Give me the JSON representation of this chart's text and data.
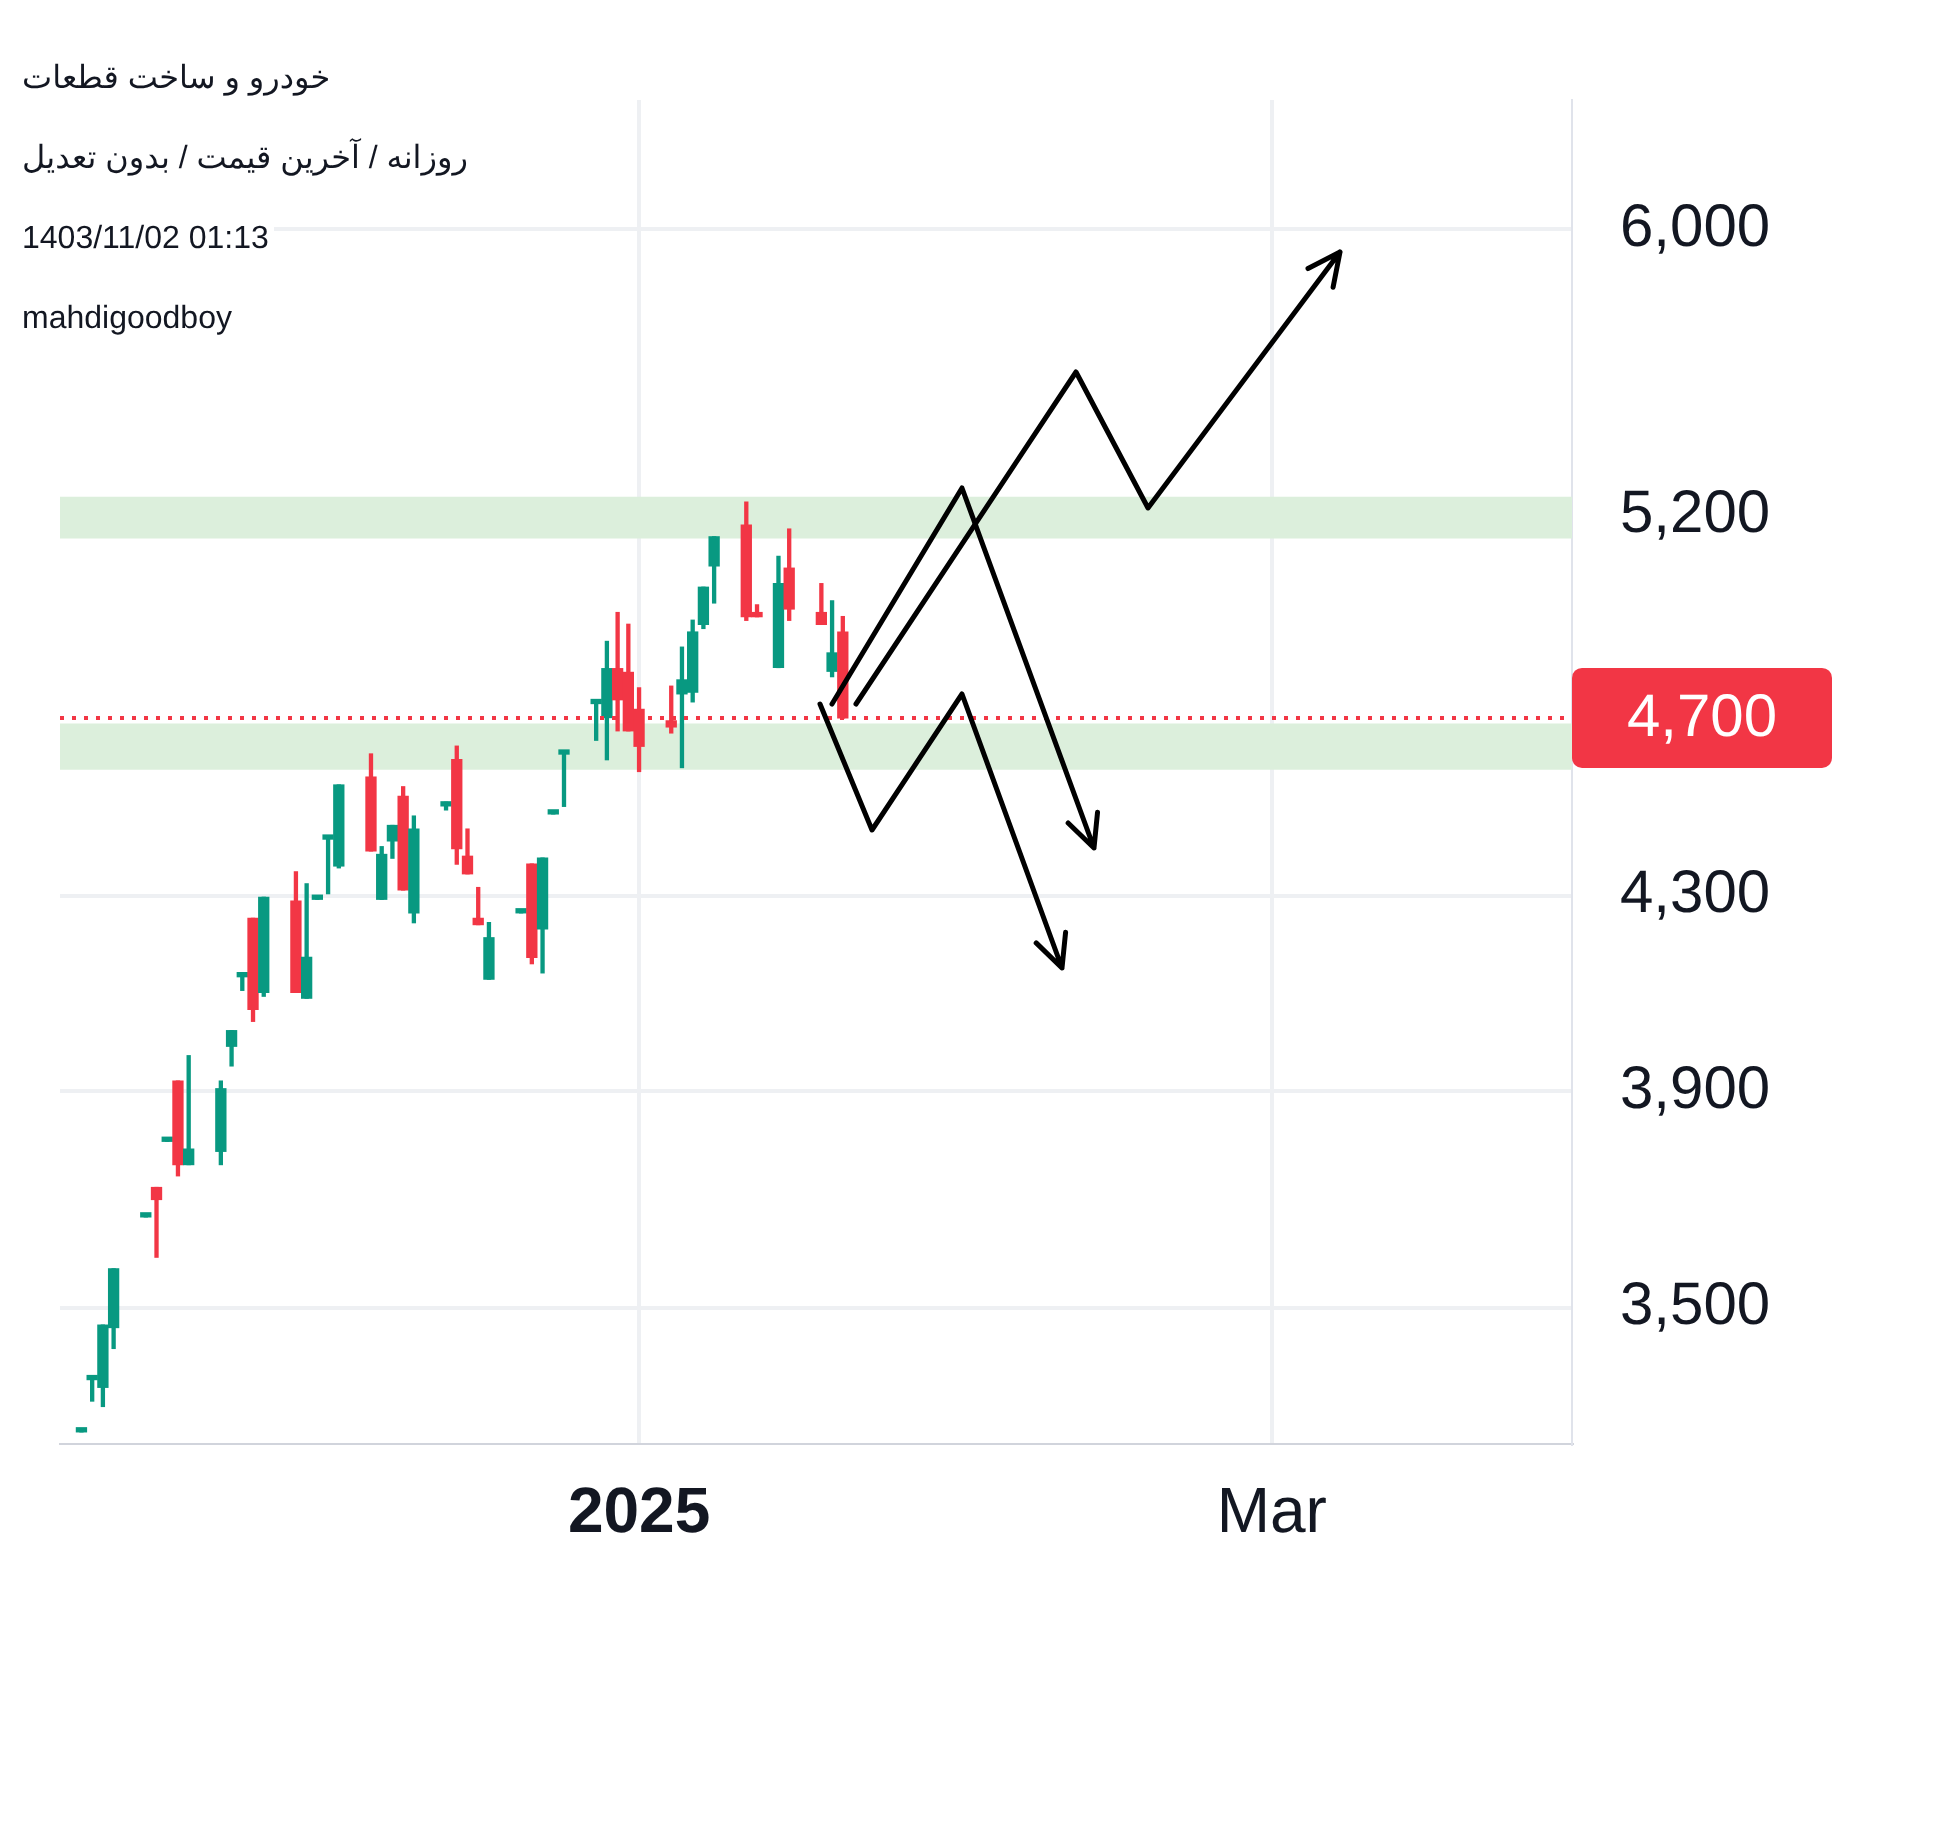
{
  "chart_data": {
    "type": "candlestick",
    "title": "خودرو و ساخت قطعات",
    "subtitle": "روزانه / آخرین قیمت / بدون تعدیل",
    "annotations": [
      "1403/11/02 01:13",
      "mahdigoodboy"
    ],
    "x": [
      "2024-11-10",
      "2024-11-11",
      "2024-11-12",
      "2024-11-13",
      "2024-11-16",
      "2024-11-17",
      "2024-11-18",
      "2024-11-19",
      "2024-11-20",
      "2024-11-23",
      "2024-11-24",
      "2024-11-25",
      "2024-11-26",
      "2024-11-27",
      "2024-11-30",
      "2024-12-01",
      "2024-12-02",
      "2024-12-03",
      "2024-12-04",
      "2024-12-07",
      "2024-12-08",
      "2024-12-09",
      "2024-12-10",
      "2024-12-11",
      "2024-12-14",
      "2024-12-15",
      "2024-12-16",
      "2024-12-17",
      "2024-12-18",
      "2024-12-21",
      "2024-12-22",
      "2024-12-23",
      "2024-12-24",
      "2024-12-25",
      "2024-12-28",
      "2024-12-29",
      "2024-12-30",
      "2024-12-31",
      "2025-01-01",
      "2025-01-04",
      "2025-01-05",
      "2025-01-06",
      "2025-01-07",
      "2025-01-08",
      "2025-01-11",
      "2025-01-12",
      "2025-01-14",
      "2025-01-15",
      "2025-01-18",
      "2025-01-19",
      "2025-01-20"
    ],
    "ohlc": [
      [
        3290,
        3290,
        3290,
        3290
      ],
      [
        3377,
        3380,
        3341,
        3380
      ],
      [
        3364,
        3470,
        3332,
        3470
      ],
      [
        3466,
        3569,
        3430,
        3569
      ],
      [
        3663,
        3663,
        3663,
        3663
      ],
      [
        3717,
        3717,
        3590,
        3695
      ],
      [
        3804,
        3804,
        3804,
        3804
      ],
      [
        3920,
        3920,
        3739,
        3760
      ],
      [
        3760,
        3970,
        3760,
        3789
      ],
      [
        3785,
        3920,
        3760,
        3905
      ],
      [
        3989,
        4020,
        3950,
        4020
      ],
      [
        4130,
        4130,
        4102,
        4130
      ],
      [
        4252,
        4252,
        4039,
        4063
      ],
      [
        4098,
        4297,
        4090,
        4297
      ],
      [
        4289,
        4352,
        4098,
        4098
      ],
      [
        4086,
        4326,
        4086,
        4170
      ],
      [
        4293,
        4293,
        4293,
        4293
      ],
      [
        4424,
        4424,
        4305,
        4424
      ],
      [
        4365,
        4545,
        4361,
        4545
      ],
      [
        4563,
        4616,
        4398,
        4398
      ],
      [
        4293,
        4407,
        4293,
        4390
      ],
      [
        4420,
        4454,
        4382,
        4454
      ],
      [
        4519,
        4541,
        4313,
        4313
      ],
      [
        4264,
        4475,
        4243,
        4446
      ],
      [
        4498,
        4506,
        4489,
        4506
      ],
      [
        4603,
        4634,
        4369,
        4403
      ],
      [
        4386,
        4446,
        4348,
        4348
      ],
      [
        4252,
        4318,
        4239,
        4239
      ],
      [
        4125,
        4243,
        4125,
        4211
      ],
      [
        4264,
        4264,
        4264,
        4264
      ],
      [
        4369,
        4369,
        4157,
        4170
      ],
      [
        4230,
        4382,
        4138,
        4382
      ],
      [
        4480,
        4480,
        4480,
        4480
      ],
      [
        4616,
        4616,
        4497,
        4616
      ],
      [
        4734,
        4743,
        4648,
        4743
      ],
      [
        4701,
        4883,
        4603,
        4817
      ],
      [
        4817,
        4954,
        4670,
        4743
      ],
      [
        4808,
        4925,
        4670,
        4670
      ],
      [
        4720,
        4771,
        4576,
        4634
      ],
      [
        4693,
        4775,
        4665,
        4679
      ],
      [
        4757,
        4869,
        4585,
        4790
      ],
      [
        4761,
        4935,
        4738,
        4906
      ],
      [
        4925,
        5017,
        4915,
        5017
      ],
      [
        5071,
        5145,
        4978,
        5145
      ],
      [
        5175,
        5235,
        4935,
        4944
      ],
      [
        4954,
        4973,
        4944,
        4944
      ],
      [
        4820,
        5095,
        4820,
        5026
      ],
      [
        5065,
        5165,
        4935,
        4963
      ],
      [
        4954,
        5026,
        4925,
        4925
      ],
      [
        4811,
        4983,
        4798,
        4855
      ],
      [
        4906,
        4944,
        4700,
        4700
      ]
    ],
    "colors": [
      "#089981",
      "#089981",
      "#089981",
      "#089981",
      "#089981",
      "#f23645",
      "#089981",
      "#f23645",
      "#089981",
      "#089981",
      "#089981",
      "#089981",
      "#f23645",
      "#089981",
      "#f23645",
      "#089981",
      "#089981",
      "#089981",
      "#089981",
      "#f23645",
      "#089981",
      "#089981",
      "#f23645",
      "#089981",
      "#089981",
      "#f23645",
      "#f23645",
      "#f23645",
      "#089981",
      "#089981",
      "#f23645",
      "#089981",
      "#089981",
      "#089981",
      "#089981",
      "#089981",
      "#f23645",
      "#f23645",
      "#f23645",
      "#f23645",
      "#089981",
      "#089981",
      "#089981",
      "#089981",
      "#f23645",
      "#f23645",
      "#089981",
      "#f23645",
      "#f23645",
      "#089981",
      "#f23645"
    ],
    "xlim": [
      "2024-11-08",
      "2025-03-29"
    ],
    "xticks": [
      {
        "value": "2025-01-01",
        "label": "2025"
      },
      {
        "value": "2025-03-01",
        "label": "Mar"
      }
    ],
    "log": "y",
    "ylim": [
      3270,
      6400
    ],
    "yticks": [
      {
        "value": 3500,
        "label": "3,500"
      },
      {
        "value": 3900,
        "label": "3,900"
      },
      {
        "value": 4300,
        "label": "4,300"
      },
      {
        "value": 5200,
        "label": "5,200"
      },
      {
        "value": 6000,
        "label": "6,000"
      }
    ],
    "ref_lines": [
      {
        "axis": "y",
        "value": 4700,
        "label": "4,700",
        "color": "#f23645",
        "line_style": "dotted"
      }
    ],
    "bands": [
      {
        "axis": "y",
        "from": 5141,
        "to": 5249,
        "color": "#dcefdc"
      },
      {
        "axis": "y",
        "from": 4580,
        "to": 4687,
        "color": "#dcefdc"
      }
    ],
    "grid": true,
    "legend": false
  }
}
